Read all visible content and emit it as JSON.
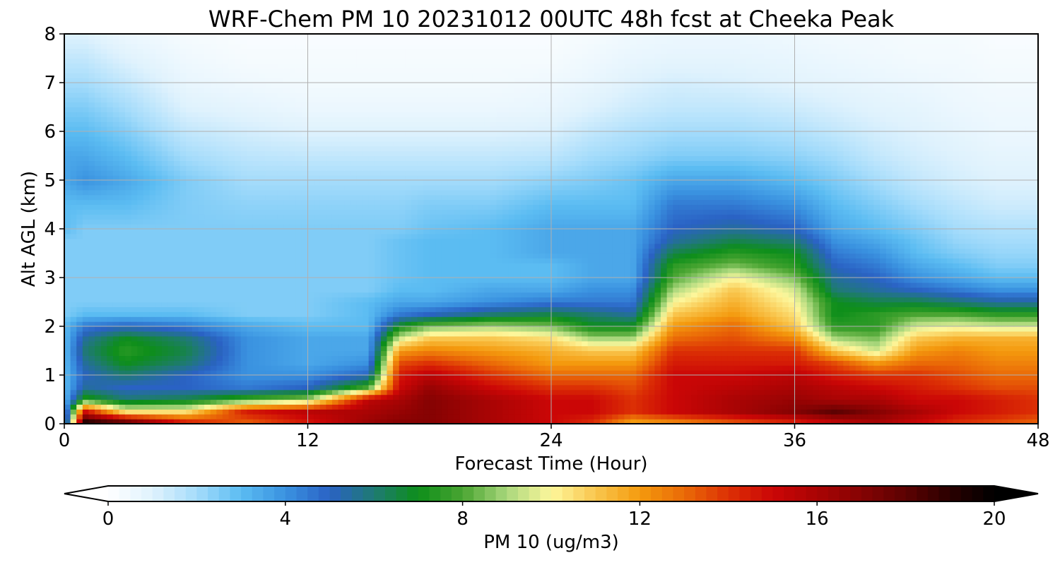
{
  "chart_data": {
    "type": "heatmap",
    "title": "WRF-Chem PM 10  20231012 00UTC 48h fcst at Cheeka Peak",
    "xlabel": "Forecast Time (Hour)",
    "ylabel": "Alt AGL (km)",
    "xlim": [
      0,
      48
    ],
    "ylim": [
      0,
      8
    ],
    "xticks": [
      0,
      12,
      24,
      36,
      48
    ],
    "yticks": [
      0,
      1,
      2,
      3,
      4,
      5,
      6,
      7,
      8
    ],
    "grid": true,
    "colorbar": {
      "label": "PM 10  (ug/m3)",
      "range": [
        0,
        20
      ],
      "ticks": [
        0,
        4,
        8,
        12,
        16,
        20
      ],
      "extend": "both",
      "orientation": "horizontal",
      "placement": "bottom",
      "stops": [
        {
          "v": 0,
          "c": "#ffffff"
        },
        {
          "v": 1,
          "c": "#dff2fd"
        },
        {
          "v": 2,
          "c": "#a5dcfb"
        },
        {
          "v": 3,
          "c": "#5bbcf2"
        },
        {
          "v": 4,
          "c": "#3a92e0"
        },
        {
          "v": 5,
          "c": "#2a62c4"
        },
        {
          "v": 6,
          "c": "#1f7a73"
        },
        {
          "v": 7,
          "c": "#0d8e1a"
        },
        {
          "v": 8,
          "c": "#4aa532"
        },
        {
          "v": 9,
          "c": "#a9d77c"
        },
        {
          "v": 10,
          "c": "#fdf79c"
        },
        {
          "v": 11,
          "c": "#f9c64e"
        },
        {
          "v": 12,
          "c": "#f49a0e"
        },
        {
          "v": 13,
          "c": "#ea6a07"
        },
        {
          "v": 14,
          "c": "#dc3005"
        },
        {
          "v": 15,
          "c": "#cb0606"
        },
        {
          "v": 16,
          "c": "#a90404"
        },
        {
          "v": 17,
          "c": "#850303"
        },
        {
          "v": 18,
          "c": "#5c0202"
        },
        {
          "v": 19,
          "c": "#2a0000"
        },
        {
          "v": 20,
          "c": "#000000"
        }
      ]
    },
    "field": {
      "x": [
        0,
        1,
        3,
        6,
        9,
        12,
        15,
        16.5,
        18,
        21,
        24,
        26,
        28,
        30,
        33,
        36,
        38,
        40,
        42,
        44,
        46,
        48
      ],
      "y": [
        0,
        0.25,
        0.5,
        0.75,
        1.0,
        1.25,
        1.5,
        1.75,
        2.0,
        2.25,
        2.5,
        2.75,
        3.0,
        3.25,
        3.5,
        3.75,
        4.0,
        4.5,
        5.0,
        5.5,
        6.0,
        6.5,
        7.0,
        7.5,
        8.0
      ],
      "values": [
        [
          3,
          20,
          19,
          15,
          13,
          14.5,
          16.5,
          17,
          17,
          16,
          15,
          14,
          11.5,
          12,
          13,
          14,
          15,
          16,
          15,
          14,
          13.5,
          13
        ],
        [
          3,
          15,
          10.5,
          10.5,
          14.5,
          15.5,
          16,
          16.5,
          17,
          16,
          15,
          15,
          14,
          15,
          16,
          17,
          18,
          17,
          16,
          15,
          14.5,
          14
        ],
        [
          3,
          7.5,
          6,
          6.5,
          8,
          9,
          15.5,
          16,
          17,
          16,
          15,
          15,
          14,
          15,
          16,
          16.5,
          16,
          16,
          15,
          15,
          14.5,
          14
        ],
        [
          3,
          5.5,
          5,
          5,
          4.5,
          5,
          8,
          15,
          16.5,
          15,
          14,
          14,
          13.5,
          15,
          15.5,
          16,
          15.5,
          15,
          14.5,
          14,
          13.5,
          13.5
        ],
        [
          3,
          5,
          6,
          5,
          4,
          4,
          5,
          14.5,
          15.5,
          14,
          13,
          13,
          13,
          15,
          15,
          15.5,
          14.5,
          14,
          14,
          13.5,
          13,
          13
        ],
        [
          3,
          5.5,
          7,
          6,
          4,
          3.5,
          4,
          13.5,
          14,
          13,
          12,
          12,
          12,
          14.5,
          14.5,
          14.5,
          13.5,
          12,
          13,
          13,
          12.5,
          12.5
        ],
        [
          3,
          6,
          7.5,
          6.5,
          4,
          3.5,
          3.5,
          12,
          12.5,
          12,
          11.5,
          11,
          11,
          14,
          14,
          14,
          11,
          9.5,
          12,
          12.5,
          12,
          12
        ],
        [
          3,
          5.5,
          7,
          6,
          4,
          3.5,
          3.5,
          9.5,
          11,
          11,
          10.5,
          9,
          9,
          13,
          13.5,
          12.5,
          9,
          8.5,
          11,
          11.5,
          11.5,
          11.5
        ],
        [
          3,
          4.5,
          5,
          4.5,
          3.5,
          3,
          3,
          7,
          8.5,
          9,
          8.5,
          7,
          7,
          12,
          13,
          11,
          7.5,
          7.5,
          9.5,
          9.8,
          9.5,
          9.5
        ],
        [
          2.5,
          3,
          3,
          3,
          2.5,
          2.5,
          3,
          4.5,
          5,
          6,
          6.5,
          6,
          5.5,
          11,
          12,
          10.5,
          7,
          7.5,
          8,
          8,
          7.5,
          7.5
        ],
        [
          2.5,
          2.5,
          2.5,
          2.5,
          2.5,
          2.5,
          3,
          3.5,
          3.5,
          4,
          4.5,
          4.5,
          4.5,
          10,
          11.5,
          10,
          7,
          6.5,
          6.5,
          6,
          5.5,
          5.5
        ],
        [
          2.5,
          2.5,
          2.5,
          2.5,
          2.5,
          2.5,
          2.5,
          3,
          3,
          3.5,
          3.5,
          4,
          4,
          9,
          11,
          9.5,
          6,
          5.5,
          5,
          4.5,
          4,
          4
        ],
        [
          2.5,
          2.5,
          2.5,
          2.5,
          2.5,
          2.5,
          2.5,
          2.8,
          3,
          3,
          3,
          3.5,
          3.5,
          8,
          10,
          8.5,
          5.5,
          5,
          4,
          3.5,
          3,
          3
        ],
        [
          2.5,
          2.5,
          2.5,
          2.5,
          2.5,
          2.5,
          2.5,
          2.8,
          3,
          3,
          3,
          3.5,
          3.5,
          7.5,
          8.5,
          7.5,
          5,
          4.5,
          3.5,
          3,
          2.5,
          2.5
        ],
        [
          2.5,
          2.5,
          2.5,
          2.5,
          2.5,
          2.5,
          2.5,
          2.8,
          3,
          3,
          3.5,
          3.5,
          3.5,
          6.5,
          7.5,
          7,
          4.5,
          4,
          3,
          2.5,
          2.2,
          2.2
        ],
        [
          2.5,
          2.5,
          2.5,
          2.5,
          2.5,
          2.5,
          2.5,
          2.8,
          3,
          3,
          3.5,
          3.5,
          3.5,
          5.5,
          6.5,
          6,
          4,
          3.5,
          2.8,
          2.2,
          2,
          2
        ],
        [
          3,
          2.5,
          2.5,
          2.5,
          2.5,
          2.5,
          2.5,
          2.5,
          2.8,
          3,
          3.5,
          3.5,
          3.5,
          5,
          5.5,
          5,
          3.5,
          3,
          2.5,
          2,
          1.8,
          1.8
        ],
        [
          3,
          3,
          3,
          2.5,
          2.3,
          2.3,
          2.3,
          2.3,
          2.5,
          2.5,
          3,
          3,
          3,
          4.5,
          4.5,
          4,
          3,
          2.5,
          2,
          1.6,
          1.3,
          1.3
        ],
        [
          3.5,
          4,
          3.5,
          2.5,
          2,
          2,
          2,
          2,
          2,
          2,
          2.3,
          2.5,
          2.8,
          3.5,
          3.5,
          3,
          2.5,
          2,
          1.5,
          1.2,
          1,
          1
        ],
        [
          3.5,
          3.5,
          3,
          2,
          1.6,
          1.5,
          1.5,
          1.5,
          1.5,
          1.5,
          1.6,
          2,
          2.2,
          2.5,
          2.5,
          2.3,
          2,
          1.5,
          1.2,
          1,
          0.8,
          0.8
        ],
        [
          3,
          3,
          2.5,
          1.5,
          1.2,
          1,
          1,
          1,
          1,
          1,
          1.1,
          1.5,
          1.8,
          2,
          2,
          1.8,
          1.5,
          1.2,
          1,
          0.8,
          0.6,
          0.6
        ],
        [
          2.5,
          2.5,
          2,
          1,
          0.8,
          0.6,
          0.6,
          0.6,
          0.6,
          0.6,
          0.7,
          1,
          1.3,
          1.5,
          1.5,
          1.3,
          1.1,
          0.9,
          0.8,
          0.6,
          0.5,
          0.5
        ],
        [
          2,
          2,
          1.5,
          0.7,
          0.5,
          0.4,
          0.4,
          0.4,
          0.4,
          0.4,
          0.5,
          0.7,
          1,
          1.2,
          1.1,
          0.9,
          0.8,
          0.7,
          0.6,
          0.5,
          0.4,
          0.4
        ],
        [
          1.5,
          1.5,
          1,
          0.5,
          0.3,
          0.3,
          0.3,
          0.3,
          0.3,
          0.3,
          0.3,
          0.5,
          0.7,
          0.8,
          0.8,
          0.7,
          0.6,
          0.5,
          0.4,
          0.4,
          0.3,
          0.3
        ],
        [
          1,
          1,
          0.6,
          0.3,
          0.2,
          0.2,
          0.2,
          0.2,
          0.2,
          0.2,
          0.2,
          0.3,
          0.5,
          0.6,
          0.6,
          0.5,
          0.4,
          0.4,
          0.3,
          0.3,
          0.2,
          0.2
        ]
      ]
    }
  }
}
